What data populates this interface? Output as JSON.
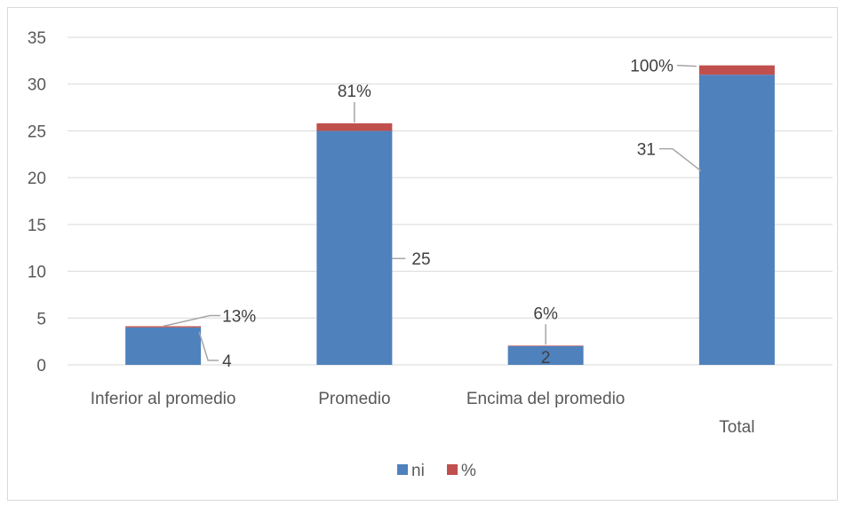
{
  "chart_data": {
    "type": "bar",
    "stacked": true,
    "categories": [
      "Inferior al promedio",
      "Promedio",
      "Encima del promedio",
      "Total"
    ],
    "series": [
      {
        "name": "ni",
        "values": [
          4,
          25,
          2,
          31
        ],
        "labels": [
          "4",
          "25",
          "2",
          "31"
        ],
        "color": "#4F81BD"
      },
      {
        "name": "%",
        "values": [
          0.13,
          0.81,
          0.06,
          1.0
        ],
        "labels": [
          "13%",
          "81%",
          "6%",
          "100%"
        ],
        "color": "#C0504D"
      }
    ],
    "y_ticks": [
      "0",
      "5",
      "10",
      "15",
      "20",
      "25",
      "30",
      "35"
    ],
    "ylim": [
      0,
      35
    ],
    "grid": true,
    "legend_position": "bottom",
    "title": ""
  }
}
